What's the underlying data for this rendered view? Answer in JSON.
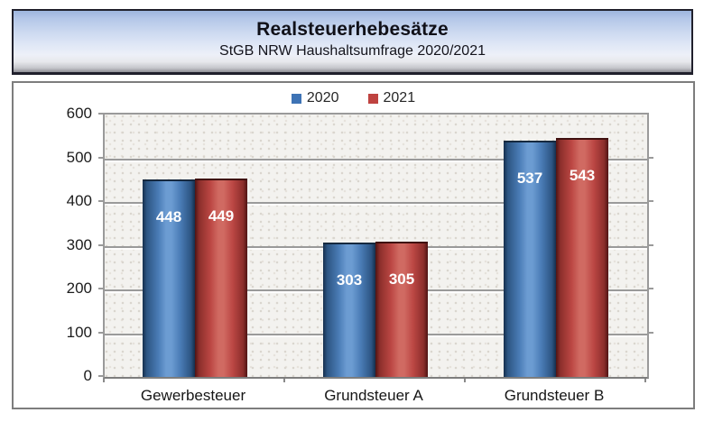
{
  "header": {
    "title": "Realsteuerhebesätze",
    "subtitle": "StGB NRW Haushaltsumfrage 2020/2021"
  },
  "legend": {
    "items": [
      {
        "label": "2020",
        "color": "#3e73b5"
      },
      {
        "label": "2021",
        "color": "#bf4340"
      }
    ]
  },
  "chart_data": {
    "type": "bar",
    "title": "Realsteuerhebesätze",
    "subtitle": "StGB NRW Haushaltsumfrage 2020/2021",
    "categories": [
      "Gewerbesteuer",
      "Grundsteuer A",
      "Grundsteuer B"
    ],
    "series": [
      {
        "name": "2020",
        "color": "#4f81bd",
        "values": [
          448,
          303,
          537
        ]
      },
      {
        "name": "2021",
        "color": "#c0504d",
        "values": [
          449,
          305,
          543
        ]
      }
    ],
    "xlabel": "",
    "ylabel": "",
    "ylim": [
      0,
      600
    ],
    "yticks": [
      0,
      100,
      200,
      300,
      400,
      500,
      600
    ],
    "grid": true,
    "legend_position": "top-center",
    "data_labels": "inside-end"
  }
}
